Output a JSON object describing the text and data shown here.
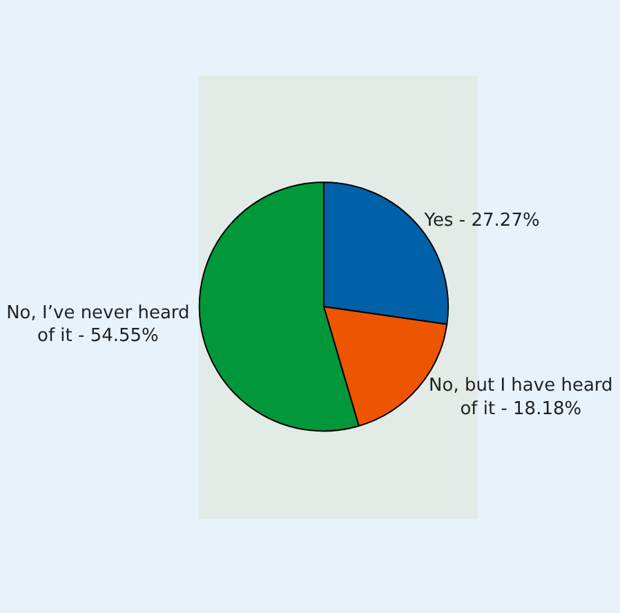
{
  "chart_data": {
    "type": "pie",
    "categories": [
      "Yes",
      "No, but I have heard of it",
      "No, I’ve never heard of it"
    ],
    "values": [
      27.27,
      18.18,
      54.55
    ],
    "value_labels": [
      "27.27%",
      "18.18%",
      "54.55%"
    ],
    "colors": [
      "#0060a8",
      "#ee5500",
      "#00983a"
    ],
    "legend": false
  }
}
